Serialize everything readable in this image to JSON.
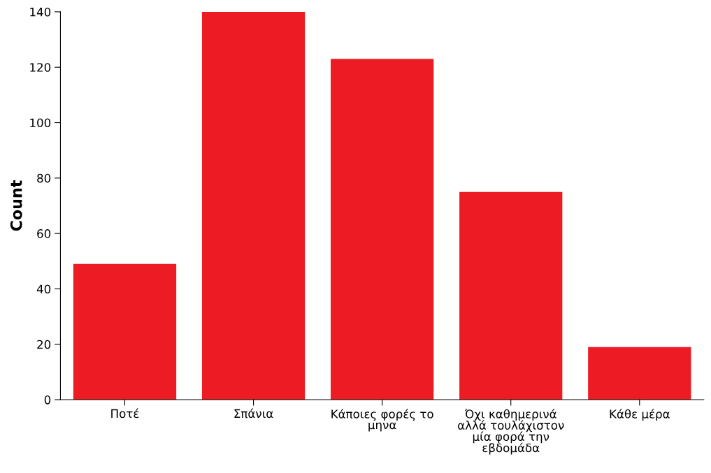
{
  "chart_data": {
    "type": "bar",
    "ylabel": "Count",
    "categories": [
      "Ποτέ",
      "Σπάνια",
      "Κάποιες φορές το\nμηνα",
      "Όχι καθημερινά\nαλλά τουλάχιστον\nμία φορά την\nεβδομάδα",
      "Κάθε μέρα"
    ],
    "values": [
      49,
      140,
      123,
      75,
      19
    ],
    "color": "#ed1c24",
    "ylim": [
      0,
      140
    ],
    "yticks": [
      0,
      20,
      40,
      60,
      80,
      100,
      120,
      140
    ],
    "grid": false
  }
}
